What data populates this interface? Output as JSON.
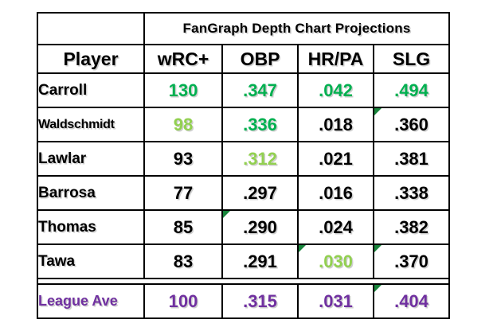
{
  "chart_data": {
    "type": "table",
    "title": "FanGraph Depth Chart Projections",
    "columns": [
      "Player",
      "wRC+",
      "OBP",
      "HR/PA",
      "SLG"
    ],
    "rows": [
      [
        "Carroll",
        130,
        0.347,
        0.042,
        0.494
      ],
      [
        "Waldschmidt",
        98,
        0.336,
        0.018,
        0.36
      ],
      [
        "Lawlar",
        93,
        0.312,
        0.021,
        0.381
      ],
      [
        "Barrosa",
        77,
        0.297,
        0.016,
        0.338
      ],
      [
        "Thomas",
        85,
        0.29,
        0.024,
        0.382
      ],
      [
        "Tawa",
        83,
        0.291,
        0.03,
        0.37
      ],
      [
        "League Ave",
        100,
        0.315,
        0.031,
        0.404
      ]
    ]
  },
  "table": {
    "title": "FanGraph Depth Chart Projections",
    "columns": [
      "Player",
      "wRC+",
      "OBP",
      "HR/PA",
      "SLG"
    ],
    "rows": [
      {
        "player": "Carroll",
        "cells": [
          {
            "t": "130",
            "c": "green"
          },
          {
            "t": ".347",
            "c": "green"
          },
          {
            "t": ".042",
            "c": "green"
          },
          {
            "t": ".494",
            "c": "green"
          }
        ]
      },
      {
        "player": "Waldschmidt",
        "compact": true,
        "cells": [
          {
            "t": "98",
            "c": "light_green"
          },
          {
            "t": ".336",
            "c": "green"
          },
          {
            "t": ".018",
            "c": "black"
          },
          {
            "t": ".360",
            "c": "black",
            "flag": true
          }
        ]
      },
      {
        "player": "Lawlar",
        "cells": [
          {
            "t": "93",
            "c": "black"
          },
          {
            "t": ".312",
            "c": "light_green"
          },
          {
            "t": ".021",
            "c": "black"
          },
          {
            "t": ".381",
            "c": "black"
          }
        ]
      },
      {
        "player": "Barrosa",
        "cells": [
          {
            "t": "77",
            "c": "black"
          },
          {
            "t": ".297",
            "c": "black"
          },
          {
            "t": ".016",
            "c": "black"
          },
          {
            "t": ".338",
            "c": "black"
          }
        ]
      },
      {
        "player": "Thomas",
        "cells": [
          {
            "t": "85",
            "c": "black"
          },
          {
            "t": ".290",
            "c": "black",
            "flag": true
          },
          {
            "t": ".024",
            "c": "black"
          },
          {
            "t": ".382",
            "c": "black"
          }
        ]
      },
      {
        "player": "Tawa",
        "cells": [
          {
            "t": "83",
            "c": "black"
          },
          {
            "t": ".291",
            "c": "black"
          },
          {
            "t": ".030",
            "c": "light_green",
            "flag": true
          },
          {
            "t": ".370",
            "c": "black",
            "flag": true
          }
        ]
      }
    ],
    "league_row": {
      "player": "League Ave",
      "player_color": "purple",
      "cells": [
        {
          "t": "100",
          "c": "purple"
        },
        {
          "t": ".315",
          "c": "purple"
        },
        {
          "t": ".031",
          "c": "purple"
        },
        {
          "t": ".404",
          "c": "purple",
          "flag": true
        }
      ]
    }
  },
  "colors": {
    "green": "#00B050",
    "light_green": "#92D050",
    "purple": "#7030A0",
    "black": "#000000",
    "flag_triangle": "#18843B"
  }
}
